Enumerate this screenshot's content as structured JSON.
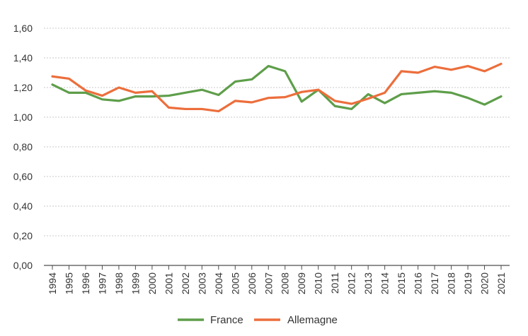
{
  "chart_data": {
    "type": "line",
    "title": "",
    "xlabel": "",
    "ylabel": "",
    "x": [
      "1994",
      "1995",
      "1996",
      "1997",
      "1998",
      "1999",
      "2000",
      "2001",
      "2002",
      "2003",
      "2004",
      "2005",
      "2006",
      "2007",
      "2008",
      "2009",
      "2010",
      "2011",
      "2012",
      "2013",
      "2014",
      "2015",
      "2016",
      "2017",
      "2018",
      "2019",
      "2020",
      "2021"
    ],
    "ylim": [
      0,
      1.6
    ],
    "yticks": [
      0.0,
      0.2,
      0.4,
      0.6,
      0.8,
      1.0,
      1.2,
      1.4,
      1.6
    ],
    "ytick_labels": [
      "0,00",
      "0,20",
      "0,40",
      "0,60",
      "0,80",
      "1,00",
      "1,20",
      "1,40",
      "1,60"
    ],
    "grid": true,
    "legend_position": "bottom-center",
    "series": [
      {
        "name": "France",
        "color": "#5e9e4a",
        "values": [
          1.22,
          1.165,
          1.165,
          1.12,
          1.11,
          1.14,
          1.14,
          1.145,
          1.165,
          1.185,
          1.15,
          1.24,
          1.255,
          1.345,
          1.31,
          1.105,
          1.185,
          1.075,
          1.055,
          1.155,
          1.095,
          1.155,
          1.165,
          1.175,
          1.165,
          1.13,
          1.085,
          1.14
        ]
      },
      {
        "name": "Allemagne",
        "color": "#ec6e3c",
        "values": [
          1.275,
          1.26,
          1.18,
          1.145,
          1.2,
          1.165,
          1.175,
          1.065,
          1.055,
          1.055,
          1.04,
          1.11,
          1.1,
          1.13,
          1.135,
          1.17,
          1.185,
          1.11,
          1.09,
          1.125,
          1.165,
          1.31,
          1.3,
          1.34,
          1.32,
          1.345,
          1.31,
          1.36
        ]
      }
    ]
  }
}
